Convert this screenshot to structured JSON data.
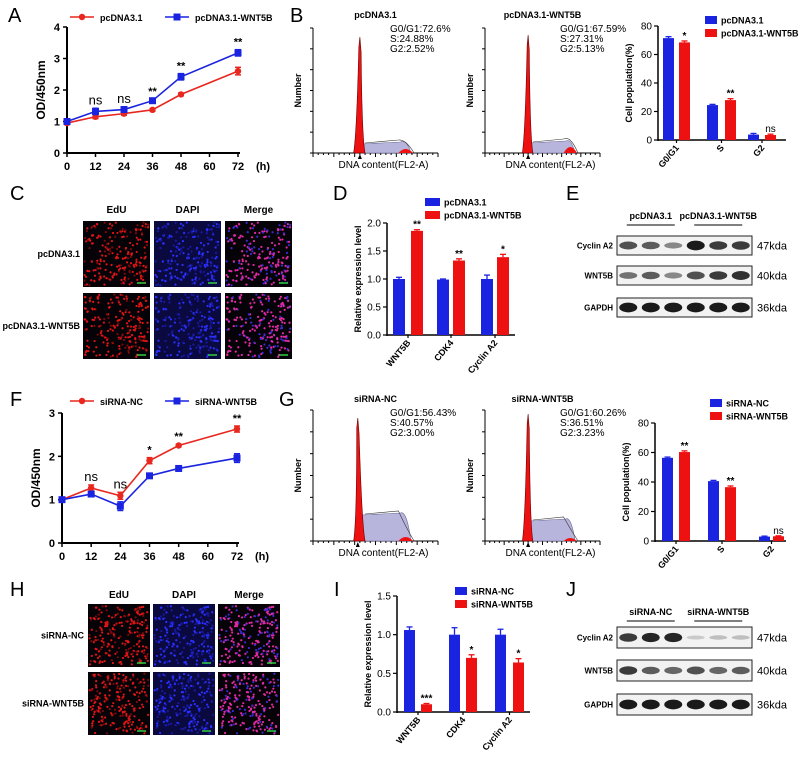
{
  "panels": {
    "A": "A",
    "B": "B",
    "C": "C",
    "D": "D",
    "E": "E",
    "F": "F",
    "G": "G",
    "H": "H",
    "I": "I",
    "J": "J"
  },
  "colors": {
    "control": "#e8271f",
    "treatment": "#1a24e0",
    "histogram_fill": "#ee1111",
    "histogram_bg": "#b7b5dc"
  },
  "chart_data": [
    {
      "panel": "A",
      "type": "line",
      "x": [
        0,
        12,
        24,
        36,
        48,
        72
      ],
      "xticks": [
        "0",
        "12",
        "24",
        "36",
        "48",
        "60",
        "72"
      ],
      "xunit": "(h)",
      "ylabel": "OD/450nm",
      "ylim": [
        0,
        4
      ],
      "yticks": [
        "0",
        "1",
        "2",
        "3",
        "4"
      ],
      "legend": "top",
      "series": [
        {
          "name": "pcDNA3.1",
          "color": "#e8271f",
          "marker": "circle",
          "values": [
            0.95,
            1.15,
            1.25,
            1.37,
            1.86,
            2.6
          ],
          "err": [
            0.05,
            0.06,
            0.05,
            0.04,
            0.04,
            0.12
          ]
        },
        {
          "name": "pcDNA3.1-WNT5B",
          "color": "#1a24e0",
          "marker": "square",
          "values": [
            1.0,
            1.32,
            1.38,
            1.66,
            2.42,
            3.18
          ],
          "err": [
            0.05,
            0.1,
            0.08,
            0.06,
            0.1,
            0.1
          ]
        }
      ],
      "annotations": [
        {
          "x": 12,
          "text": "ns"
        },
        {
          "x": 24,
          "text": "ns"
        },
        {
          "x": 36,
          "text": "**"
        },
        {
          "x": 48,
          "text": "**"
        },
        {
          "x": 72,
          "text": "**"
        }
      ]
    },
    {
      "panel": "B",
      "type": "histogram",
      "xlabel": "DNA content(FL2-A)",
      "ylabel": "Number",
      "xlim": [
        0,
        120
      ],
      "plots": [
        {
          "title": "pcDNA3.1",
          "stats": [
            "G0/G1:72.6%",
            "S:24.88%",
            "G2:2.52%"
          ]
        },
        {
          "title": "pcDNA3.1-WNT5B",
          "stats": [
            "G0/G1:67.59%",
            "S:27.31%",
            "G2:5.13%"
          ]
        }
      ]
    },
    {
      "panel": "B",
      "type": "bar",
      "categories": [
        "G0/G1",
        "S",
        "G2"
      ],
      "ylabel": "Cell population(%)",
      "ylim": [
        0,
        80
      ],
      "yticks": [
        "0",
        "20",
        "40",
        "60",
        "80"
      ],
      "legend": "top-right",
      "series": [
        {
          "name": "pcDNA3.1",
          "color": "#1a24e0",
          "values": [
            71.5,
            24.5,
            3.8
          ],
          "err": [
            1.0,
            0.5,
            0.8
          ]
        },
        {
          "name": "pcDNA3.1-WNT5B",
          "color": "#ee1111",
          "values": [
            68.5,
            28.0,
            3.5
          ],
          "err": [
            1.0,
            1.0,
            0.6
          ]
        }
      ],
      "annotations": [
        "*",
        "**",
        "ns"
      ]
    },
    {
      "panel": "D",
      "type": "bar",
      "categories": [
        "WNT5B",
        "CDK4",
        "Cyclin A2"
      ],
      "ylabel": "Relative expression level",
      "ylim": [
        0,
        2.0
      ],
      "yticks": [
        "0.0",
        "0.5",
        "1.0",
        "1.5",
        "2.0"
      ],
      "legend": "top",
      "series": [
        {
          "name": "pcDNA3.1",
          "color": "#1a24e0",
          "values": [
            1.0,
            0.99,
            1.0
          ],
          "err": [
            0.03,
            0.01,
            0.07
          ]
        },
        {
          "name": "pcDNA3.1-WNT5B",
          "color": "#ee1111",
          "values": [
            1.86,
            1.33,
            1.39
          ],
          "err": [
            0.02,
            0.03,
            0.05
          ]
        }
      ],
      "annotations": [
        "**",
        "**",
        "*"
      ]
    },
    {
      "panel": "F",
      "type": "line",
      "x": [
        0,
        12,
        24,
        36,
        48,
        72
      ],
      "xticks": [
        "0",
        "12",
        "24",
        "36",
        "48",
        "60",
        "72"
      ],
      "xunit": "(h)",
      "ylabel": "OD/450nm",
      "ylim": [
        0,
        3
      ],
      "yticks": [
        "0",
        "1",
        "2",
        "3"
      ],
      "legend": "top",
      "series": [
        {
          "name": "siRNA-NC",
          "color": "#e8271f",
          "marker": "circle",
          "values": [
            1.0,
            1.27,
            1.09,
            1.9,
            2.25,
            2.63
          ],
          "err": [
            0.03,
            0.07,
            0.08,
            0.07,
            0.03,
            0.07
          ]
        },
        {
          "name": "siRNA-WNT5B",
          "color": "#1a24e0",
          "marker": "square",
          "values": [
            1.0,
            1.13,
            0.85,
            1.55,
            1.72,
            1.96
          ],
          "err": [
            0.03,
            0.05,
            0.1,
            0.04,
            0.05,
            0.1
          ]
        }
      ],
      "annotations": [
        {
          "x": 12,
          "text": "ns"
        },
        {
          "x": 24,
          "text": "ns"
        },
        {
          "x": 36,
          "text": "*"
        },
        {
          "x": 48,
          "text": "**"
        },
        {
          "x": 72,
          "text": "**"
        }
      ]
    },
    {
      "panel": "G",
      "type": "histogram",
      "xlabel": "DNA content(FL2-A)",
      "ylabel": "Number",
      "xlim": [
        0,
        120
      ],
      "plots": [
        {
          "title": "siRNA-NC",
          "stats": [
            "G0/G1:56.43%",
            "S:40.57%",
            "G2:3.00%"
          ]
        },
        {
          "title": "siRNA-WNT5B",
          "stats": [
            "G0/G1:60.26%",
            "S:36.51%",
            "G2:3.23%"
          ]
        }
      ]
    },
    {
      "panel": "G",
      "type": "bar",
      "categories": [
        "G0/G1",
        "S",
        "G2"
      ],
      "ylabel": "Cell population(%)",
      "ylim": [
        0,
        80
      ],
      "yticks": [
        "0",
        "20",
        "40",
        "60",
        "80"
      ],
      "legend": "top-right",
      "series": [
        {
          "name": "siRNA-NC",
          "color": "#1a24e0",
          "values": [
            56.4,
            40.6,
            3.0
          ],
          "err": [
            0.5,
            0.5,
            0.3
          ]
        },
        {
          "name": "siRNA-WNT5B",
          "color": "#ee1111",
          "values": [
            60.3,
            36.5,
            3.2
          ],
          "err": [
            0.8,
            0.8,
            0.3
          ]
        }
      ],
      "annotations": [
        "**",
        "**",
        "ns"
      ]
    },
    {
      "panel": "I",
      "type": "bar",
      "categories": [
        "WNT5B",
        "CDK4",
        "Cyclin A2"
      ],
      "ylabel": "Relative expression level",
      "ylim": [
        0,
        1.5
      ],
      "yticks": [
        "0.0",
        "0.5",
        "1.0",
        "1.5"
      ],
      "legend": "top",
      "series": [
        {
          "name": "siRNA-NC",
          "color": "#1a24e0",
          "values": [
            1.06,
            1.0,
            1.0
          ],
          "err": [
            0.04,
            0.09,
            0.07
          ]
        },
        {
          "name": "siRNA-WNT5B",
          "color": "#ee1111",
          "values": [
            0.1,
            0.7,
            0.64
          ],
          "err": [
            0.01,
            0.04,
            0.05
          ]
        }
      ],
      "annotations": [
        "***",
        "*",
        "*"
      ]
    }
  ],
  "microscopy": {
    "C": {
      "columns": [
        "EdU",
        "DAPI",
        "Merge"
      ],
      "rows": [
        "pcDNA3.1",
        "pcDNA3.1-WNT5B"
      ]
    },
    "H": {
      "columns": [
        "EdU",
        "DAPI",
        "Merge"
      ],
      "rows": [
        "siRNA-NC",
        "siRNA-WNT5B"
      ]
    }
  },
  "blots": {
    "E": {
      "groups": [
        "pcDNA3.1",
        "pcDNA3.1-WNT5B"
      ],
      "rows": [
        {
          "protein": "Cyclin A2",
          "size": "47kda",
          "intensity": [
            0.7,
            0.65,
            0.45,
            0.95,
            0.8,
            0.8
          ]
        },
        {
          "protein": "WNT5B",
          "size": "40kda",
          "intensity": [
            0.55,
            0.65,
            0.45,
            0.7,
            0.8,
            0.85
          ]
        },
        {
          "protein": "GAPDH",
          "size": "36kda",
          "intensity": [
            0.95,
            0.95,
            0.95,
            0.95,
            0.95,
            0.95
          ]
        }
      ]
    },
    "J": {
      "groups": [
        "siRNA-NC",
        "siRNA-WNT5B"
      ],
      "rows": [
        {
          "protein": "Cyclin A2",
          "size": "47kda",
          "intensity": [
            0.8,
            0.9,
            0.9,
            0.15,
            0.2,
            0.2
          ]
        },
        {
          "protein": "WNT5B",
          "size": "40kda",
          "intensity": [
            0.8,
            0.65,
            0.6,
            0.7,
            0.6,
            0.65
          ]
        },
        {
          "protein": "GAPDH",
          "size": "36kda",
          "intensity": [
            0.95,
            0.95,
            0.95,
            0.95,
            0.95,
            0.95
          ]
        }
      ]
    }
  }
}
